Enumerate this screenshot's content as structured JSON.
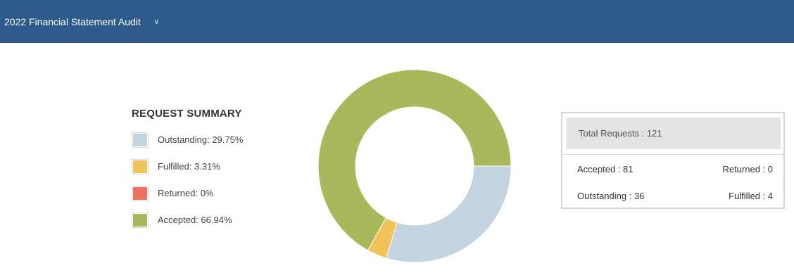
{
  "header": {
    "title": "2022 Financial Statement Audit",
    "chevron": "v",
    "background_color": "#2d5a8a"
  },
  "legend": {
    "title": "REQUEST SUMMARY",
    "items": [
      {
        "label": "Outstanding: 29.75%",
        "color": "#c3d3e0"
      },
      {
        "label": "Fulfilled: 3.31%",
        "color": "#f2c25b"
      },
      {
        "label": "Returned: 0%",
        "color": "#f0705b"
      },
      {
        "label": "Accepted: 66.94%",
        "color": "#a8b85b"
      }
    ]
  },
  "chart_data": {
    "type": "pie",
    "donut": true,
    "start_angle_deg": 90,
    "direction": "clockwise",
    "slices": [
      {
        "label": "Outstanding",
        "value": 36,
        "percent": 29.75,
        "color": "#c3d3e0"
      },
      {
        "label": "Fulfilled",
        "value": 4,
        "percent": 3.31,
        "color": "#f2c25b"
      },
      {
        "label": "Returned",
        "value": 0,
        "percent": 0,
        "color": "#f0705b"
      },
      {
        "label": "Accepted",
        "value": 81,
        "percent": 66.94,
        "color": "#a8b85b"
      }
    ],
    "legend_position": "left",
    "title": ""
  },
  "summary": {
    "total": "Total Requests : 121",
    "accepted": "Accepted : 81",
    "returned": "Returned : 0",
    "outstanding": "Outstanding : 36",
    "fulfilled": "Fulfilled : 4"
  }
}
